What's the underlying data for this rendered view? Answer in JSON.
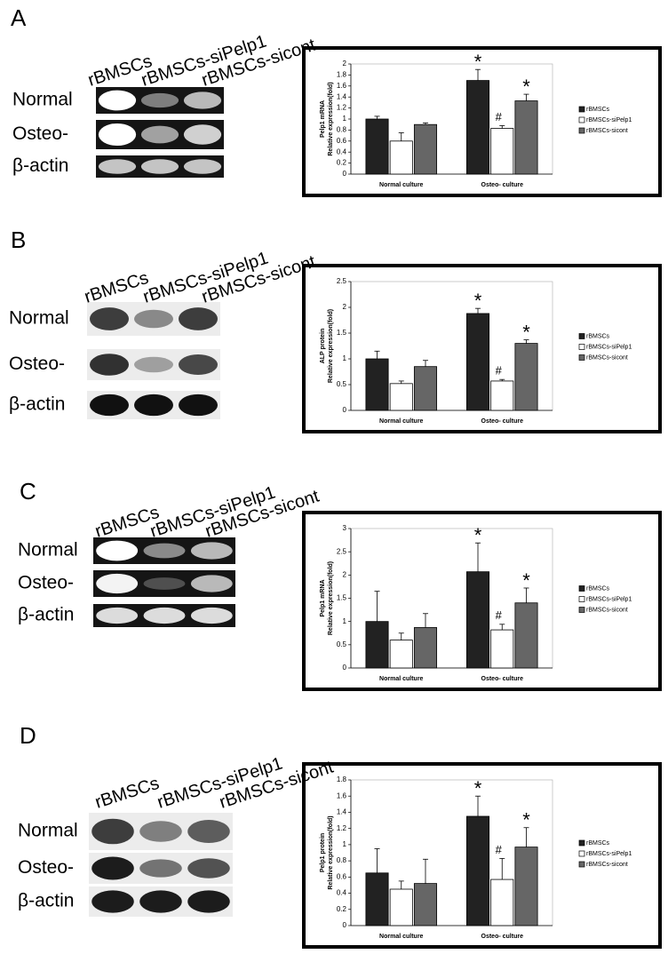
{
  "panels": [
    {
      "letter": "A",
      "lanes": [
        "rBMSCs",
        "rBMSCs-siPelp1",
        "rBMSCs-sicont"
      ],
      "rows": [
        "Normal",
        "Osteo-",
        "β-actin"
      ]
    },
    {
      "letter": "B",
      "lanes": [
        "rBMSCs",
        "rBMSCs-siPelp1",
        "rBMSCs-sicont"
      ],
      "rows": [
        "Normal",
        "Osteo-",
        "β-actin"
      ]
    },
    {
      "letter": "C",
      "lanes": [
        "rBMSCs",
        "rBMSCs-siPelp1",
        "rBMSCs-sicont"
      ],
      "rows": [
        "Normal",
        "Osteo-",
        "β-actin"
      ]
    },
    {
      "letter": "D",
      "lanes": [
        "rBMSCs",
        "rBMSCs-siPelp1",
        "rBMSCs-sicont"
      ],
      "rows": [
        "Normal",
        "Osteo-",
        "β-actin"
      ]
    }
  ],
  "chart_data": [
    {
      "type": "bar",
      "ylabel": [
        "Pelp1  mRNA",
        "Relative expression(fold)"
      ],
      "categories": [
        "Normal culture",
        "Osteo- culture"
      ],
      "series": [
        {
          "name": "rBMSCs",
          "color": "#222222",
          "values": [
            1.0,
            1.7
          ],
          "errors": [
            0.05,
            0.2
          ],
          "annotations": [
            null,
            "*"
          ]
        },
        {
          "name": "rBMSCs-siPelp1",
          "color": "#ffffff",
          "values": [
            0.6,
            0.83
          ],
          "errors": [
            0.15,
            0.05
          ],
          "annotations": [
            null,
            "#"
          ]
        },
        {
          "name": "rBMSCs-sicont",
          "color": "#666666",
          "values": [
            0.9,
            1.33
          ],
          "errors": [
            0.03,
            0.12
          ],
          "annotations": [
            null,
            "*"
          ]
        }
      ],
      "ylim": [
        0,
        2
      ],
      "yticks": [
        0,
        0.2,
        0.4,
        0.6,
        0.8,
        1,
        1.2,
        1.4,
        1.6,
        1.8,
        2
      ]
    },
    {
      "type": "bar",
      "ylabel": [
        "ALP  protein",
        "Relative expression(fold)"
      ],
      "categories": [
        "Normal culture",
        "Osteo- culture"
      ],
      "series": [
        {
          "name": "rBMSCs",
          "color": "#222222",
          "values": [
            1.0,
            1.88
          ],
          "errors": [
            0.15,
            0.1
          ],
          "annotations": [
            null,
            "*"
          ]
        },
        {
          "name": "rBMSCs-siPelp1",
          "color": "#ffffff",
          "values": [
            0.52,
            0.57
          ],
          "errors": [
            0.05,
            0.03
          ],
          "annotations": [
            null,
            "#"
          ]
        },
        {
          "name": "rBMSCs-sicont",
          "color": "#666666",
          "values": [
            0.85,
            1.3
          ],
          "errors": [
            0.12,
            0.07
          ],
          "annotations": [
            null,
            "*"
          ]
        }
      ],
      "ylim": [
        0,
        2.5
      ],
      "yticks": [
        0,
        0.5,
        1,
        1.5,
        2,
        2.5
      ]
    },
    {
      "type": "bar",
      "ylabel": [
        "Pelp1  mRNA",
        "Relative expression(fold)"
      ],
      "categories": [
        "Normal culture",
        "Osteo- culture"
      ],
      "series": [
        {
          "name": "rBMSCs",
          "color": "#222222",
          "values": [
            1.0,
            2.07
          ],
          "errors": [
            0.65,
            0.62
          ],
          "annotations": [
            null,
            "*"
          ]
        },
        {
          "name": "rBMSCs-siPelp1",
          "color": "#ffffff",
          "values": [
            0.6,
            0.82
          ],
          "errors": [
            0.15,
            0.12
          ],
          "annotations": [
            null,
            "#"
          ]
        },
        {
          "name": "rBMSCs-sicont",
          "color": "#666666",
          "values": [
            0.87,
            1.4
          ],
          "errors": [
            0.3,
            0.32
          ],
          "annotations": [
            null,
            "*"
          ]
        }
      ],
      "ylim": [
        0,
        3
      ],
      "yticks": [
        0,
        0.5,
        1,
        1.5,
        2,
        2.5,
        3
      ]
    },
    {
      "type": "bar",
      "ylabel": [
        "Pelp1  protein",
        "Relative expression(fold)"
      ],
      "categories": [
        "Normal culture",
        "Osteo- culture"
      ],
      "series": [
        {
          "name": "rBMSCs",
          "color": "#222222",
          "values": [
            0.65,
            1.35
          ],
          "errors": [
            0.3,
            0.25
          ],
          "annotations": [
            null,
            "*"
          ]
        },
        {
          "name": "rBMSCs-siPelp1",
          "color": "#ffffff",
          "values": [
            0.45,
            0.57
          ],
          "errors": [
            0.1,
            0.26
          ],
          "annotations": [
            null,
            "#"
          ]
        },
        {
          "name": "rBMSCs-sicont",
          "color": "#666666",
          "values": [
            0.52,
            0.97
          ],
          "errors": [
            0.3,
            0.24
          ],
          "annotations": [
            null,
            "*"
          ]
        }
      ],
      "ylim": [
        0,
        1.8
      ],
      "yticks": [
        0,
        0.2,
        0.4,
        0.6,
        0.8,
        1,
        1.2,
        1.4,
        1.6,
        1.8
      ]
    }
  ]
}
